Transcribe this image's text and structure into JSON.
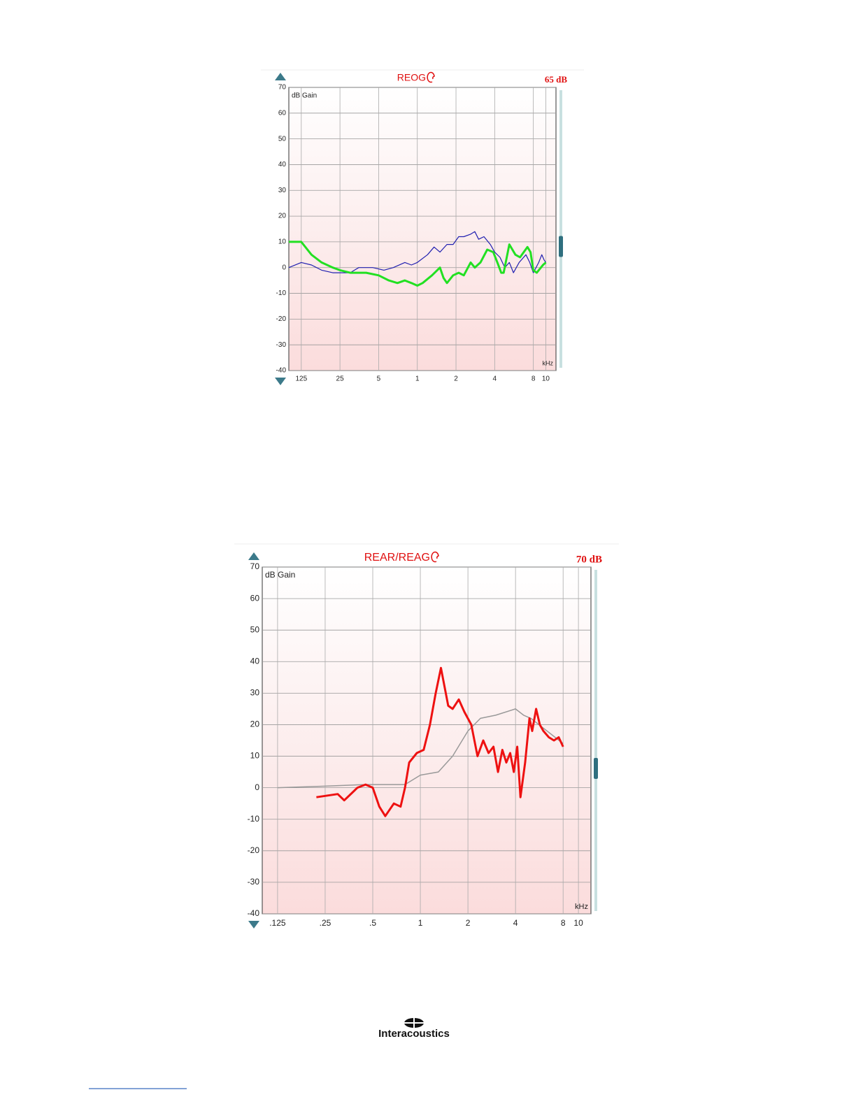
{
  "chart_data": [
    {
      "type": "line",
      "title": "REOG",
      "level": "65 dB",
      "ylabel": "dB Gain",
      "xlabel": "kHz",
      "xscale": "log",
      "grid": true,
      "xlim": [
        0.1,
        12
      ],
      "ylim": [
        -40,
        70
      ],
      "yticks": [
        70,
        60,
        50,
        40,
        30,
        20,
        10,
        0,
        -10,
        -20,
        -30,
        -40
      ],
      "xticks": [
        {
          "value": 0.125,
          "label": "125"
        },
        {
          "value": 0.25,
          "label": "25"
        },
        {
          "value": 0.5,
          "label": "5"
        },
        1,
        2,
        4,
        8,
        10
      ],
      "series": [
        {
          "color": "#2020b0",
          "width": 1.2,
          "x": [
            0.1,
            0.125,
            0.15,
            0.18,
            0.22,
            0.3,
            0.35,
            0.45,
            0.55,
            0.65,
            0.8,
            0.9,
            1.0,
            1.2,
            1.35,
            1.5,
            1.7,
            1.9,
            2.1,
            2.3,
            2.6,
            2.8,
            3.0,
            3.3,
            3.7,
            4.0,
            4.4,
            4.8,
            5.2,
            5.6,
            6.2,
            7.0,
            7.5,
            8.0,
            8.8,
            9.3,
            9.7,
            10
          ],
          "values": [
            0,
            2,
            1,
            -1,
            -2,
            -2,
            0,
            0,
            -1,
            0,
            2,
            1,
            2,
            5,
            8,
            6,
            9,
            9,
            12,
            12,
            13,
            14,
            11,
            12,
            9,
            6,
            4,
            0,
            2,
            -2,
            2,
            5,
            2,
            -2,
            2,
            5,
            3,
            2
          ]
        },
        {
          "color": "#22e022",
          "width": 3,
          "x": [
            0.1,
            0.125,
            0.15,
            0.18,
            0.22,
            0.25,
            0.3,
            0.4,
            0.5,
            0.6,
            0.7,
            0.8,
            0.9,
            1.0,
            1.1,
            1.3,
            1.5,
            1.6,
            1.7,
            1.9,
            2.1,
            2.3,
            2.6,
            2.8,
            3.1,
            3.5,
            3.9,
            4.2,
            4.5,
            4.7,
            5.2,
            5.8,
            6.3,
            7.2,
            7.6,
            8.0,
            8.5,
            9.5,
            10
          ],
          "values": [
            10,
            10,
            5,
            2,
            0,
            -1,
            -2,
            -2,
            -3,
            -5,
            -6,
            -5,
            -6,
            -7,
            -6,
            -3,
            0,
            -4,
            -6,
            -3,
            -2,
            -3,
            2,
            0,
            2,
            7,
            6,
            2,
            -2,
            -2,
            9,
            5,
            4,
            8,
            6,
            -1,
            -2,
            1,
            2
          ]
        }
      ]
    },
    {
      "type": "line",
      "title": "REAR/REAG",
      "level": "70 dB",
      "ylabel": "dB Gain",
      "xlabel": "kHz",
      "xscale": "log",
      "grid": true,
      "xlim": [
        0.1,
        12
      ],
      "ylim": [
        -40,
        70
      ],
      "yticks": [
        70,
        60,
        50,
        40,
        30,
        20,
        10,
        0,
        -10,
        -20,
        -30,
        -40
      ],
      "xticks": [
        {
          "value": 0.125,
          "label": ".125"
        },
        {
          "value": 0.25,
          "label": ".25"
        },
        {
          "value": 0.5,
          "label": ".5"
        },
        1,
        2,
        4,
        8,
        10
      ],
      "series": [
        {
          "color": "#999999",
          "width": 1.5,
          "x": [
            0.125,
            0.25,
            0.45,
            0.8,
            1.0,
            1.3,
            1.6,
            2.0,
            2.4,
            3.0,
            4.0,
            4.5,
            5.0,
            8.0
          ],
          "values": [
            0,
            0.5,
            1,
            1,
            4,
            5,
            10,
            18,
            22,
            23,
            25,
            23,
            22,
            14
          ]
        },
        {
          "color": "#ee1111",
          "width": 3,
          "x": [
            0.22,
            0.3,
            0.33,
            0.4,
            0.45,
            0.5,
            0.55,
            0.6,
            0.68,
            0.75,
            0.8,
            0.85,
            0.95,
            1.05,
            1.15,
            1.25,
            1.35,
            1.5,
            1.6,
            1.75,
            1.9,
            2.1,
            2.3,
            2.5,
            2.7,
            2.9,
            3.1,
            3.3,
            3.5,
            3.7,
            3.9,
            4.1,
            4.3,
            4.6,
            4.9,
            5.1,
            5.4,
            5.7,
            6.0,
            6.5,
            7.0,
            7.5,
            8.0
          ],
          "values": [
            -3,
            -2,
            -4,
            0,
            1,
            0,
            -6,
            -9,
            -5,
            -6,
            0,
            8,
            11,
            12,
            20,
            30,
            38,
            26,
            25,
            28,
            24,
            20,
            10,
            15,
            11,
            13,
            5,
            12,
            8,
            11,
            5,
            13,
            -3,
            8,
            22,
            18,
            25,
            20,
            18,
            16,
            15,
            16,
            13
          ]
        }
      ]
    }
  ],
  "footer": {
    "logo": "Interacoustics"
  }
}
